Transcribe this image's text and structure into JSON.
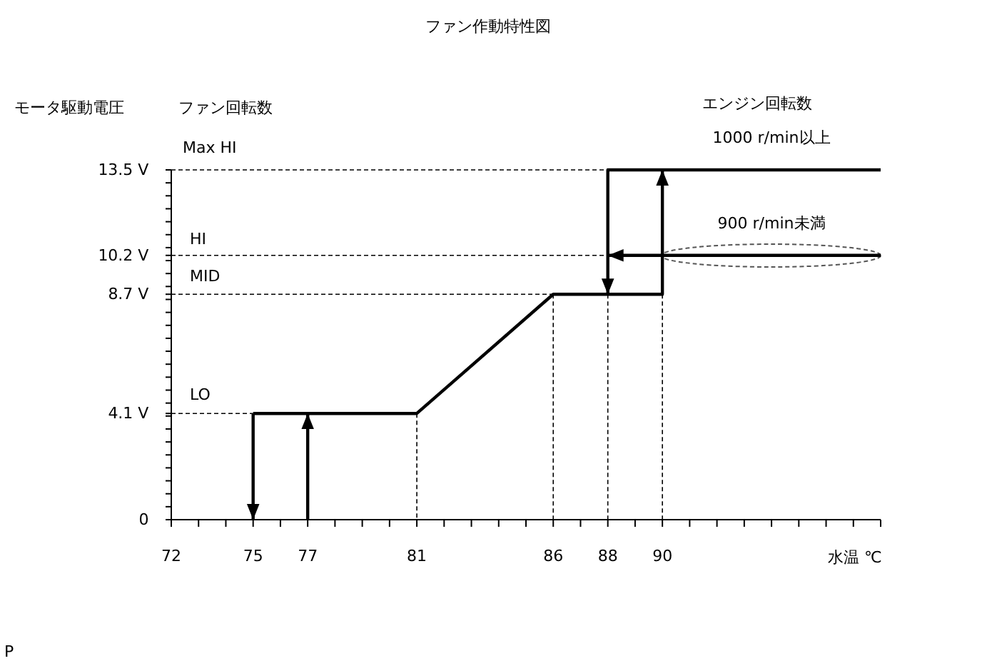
{
  "chart_data": {
    "type": "line",
    "title": "ファン作動特性図",
    "xlabel": "水温 ℃",
    "ylabel": "モータ駆動電圧",
    "series": [
      {
        "color": "#000000",
        "x": [
          75,
          81,
          86,
          90,
          90
        ],
        "values": [
          4.1,
          4.1,
          8.7,
          8.7,
          13.5
        ]
      },
      {
        "color": "#000000",
        "x": [
          98,
          88,
          88
        ],
        "values": [
          13.5,
          13.5,
          8.7
        ]
      },
      {
        "color": "#000000",
        "x": [
          98,
          88
        ],
        "values": [
          10.2,
          10.2
        ]
      },
      {
        "color": "#000000",
        "x": [
          75,
          75
        ],
        "values": [
          4.1,
          0
        ]
      },
      {
        "color": "#000000",
        "x": [
          77,
          77
        ],
        "values": [
          0,
          4.1
        ]
      }
    ],
    "xlim": [
      72,
      98
    ],
    "ylim": [
      0,
      13.5
    ],
    "xticks": [
      72,
      {
        "value": 73,
        "label": null
      },
      {
        "value": 74,
        "label": null
      },
      75,
      {
        "value": 76,
        "label": null
      },
      77,
      {
        "value": 78,
        "label": null
      },
      {
        "value": 79,
        "label": null
      },
      {
        "value": 80,
        "label": null
      },
      81,
      {
        "value": 82,
        "label": null
      },
      {
        "value": 83,
        "label": null
      },
      {
        "value": 84,
        "label": null
      },
      {
        "value": 85,
        "label": null
      },
      86,
      {
        "value": 87,
        "label": null
      },
      88,
      {
        "value": 89,
        "label": null
      },
      90,
      {
        "value": 91,
        "label": null
      },
      {
        "value": 92,
        "label": null
      },
      {
        "value": 93,
        "label": null
      },
      {
        "value": 94,
        "label": null
      },
      {
        "value": 95,
        "label": null
      },
      {
        "value": 96,
        "label": null
      },
      {
        "value": 97,
        "label": null
      },
      {
        "value": 98,
        "label": null
      }
    ],
    "yticks": [
      0,
      {
        "value": 0.5,
        "label": null
      },
      {
        "value": 1,
        "label": null
      },
      {
        "value": 1.5,
        "label": null
      },
      {
        "value": 2,
        "label": null
      },
      {
        "value": 2.5,
        "label": null
      },
      {
        "value": 3,
        "label": null
      },
      {
        "value": 3.5,
        "label": null
      },
      {
        "value": 4,
        "label": null
      },
      {
        "value": 4.1,
        "label": "4.1 V"
      },
      {
        "value": 4.5,
        "label": null
      },
      {
        "value": 5,
        "label": null
      },
      {
        "value": 5.5,
        "label": null
      },
      {
        "value": 6,
        "label": null
      },
      {
        "value": 6.5,
        "label": null
      },
      {
        "value": 7,
        "label": null
      },
      {
        "value": 7.5,
        "label": null
      },
      {
        "value": 8,
        "label": null
      },
      {
        "value": 8.5,
        "label": null
      },
      {
        "value": 8.7,
        "label": "8.7 V"
      },
      {
        "value": 9,
        "label": null
      },
      {
        "value": 9.5,
        "label": null
      },
      {
        "value": 10,
        "label": null
      },
      {
        "value": 10.2,
        "label": "10.2 V"
      },
      {
        "value": 10.5,
        "label": null
      },
      {
        "value": 11,
        "label": null
      },
      {
        "value": 11.5,
        "label": null
      },
      {
        "value": 12,
        "label": null
      },
      {
        "value": 12.5,
        "label": null
      },
      {
        "value": 13,
        "label": null
      },
      {
        "value": 13.5,
        "label": "13.5 V"
      }
    ],
    "line_style": "solid",
    "marker": "none",
    "grid": false,
    "ref_lines": [
      {
        "axis": "x",
        "value": 81,
        "color": "#000000",
        "line_style": "dashed"
      },
      {
        "axis": "x",
        "value": 86,
        "color": "#000000",
        "line_style": "dashed"
      },
      {
        "axis": "x",
        "value": 88,
        "color": "#000000",
        "line_style": "dashed"
      },
      {
        "axis": "x",
        "value": 90,
        "color": "#000000",
        "line_style": "dashed"
      },
      {
        "axis": "y",
        "value": 4.1,
        "color": "#000000",
        "line_style": "dashed"
      },
      {
        "axis": "y",
        "value": 8.7,
        "color": "#000000",
        "line_style": "dashed"
      },
      {
        "axis": "y",
        "value": 10.2,
        "color": "#000000",
        "line_style": "dashed"
      },
      {
        "axis": "y",
        "value": 13.5,
        "color": "#000000",
        "line_style": "dashed"
      }
    ],
    "annotations": [
      "ファン回転数",
      "エンジン回転数",
      "P",
      "Max HI",
      "HI",
      "MID",
      "LO",
      {
        "text": "1000 r/min以上",
        "x": 94,
        "y": 13.5
      },
      {
        "text": "900 r/min未満",
        "x": 94,
        "y": 10.2
      }
    ]
  }
}
